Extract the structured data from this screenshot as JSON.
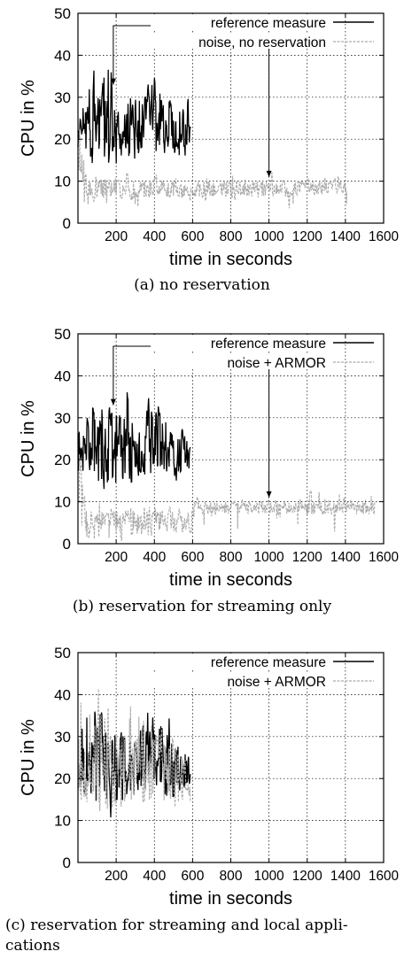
{
  "panels": [
    {
      "caption": "(a)  no reservation",
      "chart_data": {
        "type": "line",
        "xlabel": "time in seconds",
        "ylabel": "CPU in %",
        "xlim": [
          0,
          1600
        ],
        "ylim": [
          0,
          50
        ],
        "xticks": [
          "200",
          "400",
          "600",
          "800",
          "1000",
          "1200",
          "1400",
          "1600"
        ],
        "yticks": [
          "0",
          "10",
          "20",
          "30",
          "40",
          "50"
        ],
        "grid": true,
        "legend_position": "top-right",
        "series": [
          {
            "name": "reference measure",
            "color": "#000000",
            "start": 0,
            "end": 590,
            "band": [
              [
                0,
                18,
                28
              ],
              [
                100,
                14,
                33
              ],
              [
                200,
                14,
                31
              ],
              [
                300,
                15,
                30
              ],
              [
                400,
                17,
                35
              ],
              [
                500,
                15,
                28
              ],
              [
                560,
                17,
                27
              ],
              [
                590,
                17,
                22
              ]
            ],
            "spike_max": 37
          },
          {
            "name": "noise, no reservation",
            "color": "#aaaaaa",
            "start": 0,
            "end": 1410,
            "band": [
              [
                0,
                14,
                27
              ],
              [
                40,
                6,
                11
              ],
              [
                500,
                6,
                10
              ],
              [
                1410,
                7,
                10
              ]
            ],
            "spike_min": 4,
            "spike_max": 12
          }
        ],
        "annotations": [
          {
            "label_anchor": "legend",
            "x": 185,
            "y": 33
          },
          {
            "label_anchor": "legend",
            "x": 1000,
            "y": 11
          }
        ]
      }
    },
    {
      "caption": "(b)  reservation for streaming only",
      "chart_data": {
        "type": "line",
        "xlabel": "time in seconds",
        "ylabel": "CPU in %",
        "xlim": [
          0,
          1600
        ],
        "ylim": [
          0,
          50
        ],
        "xticks": [
          "200",
          "400",
          "600",
          "800",
          "1000",
          "1200",
          "1400",
          "1600"
        ],
        "yticks": [
          "0",
          "10",
          "20",
          "30",
          "40",
          "50"
        ],
        "grid": true,
        "legend_position": "top-right",
        "series": [
          {
            "name": "reference measure",
            "color": "#000000",
            "start": 0,
            "end": 590,
            "band": [
              [
                0,
                18,
                28
              ],
              [
                100,
                14,
                33
              ],
              [
                200,
                14,
                31
              ],
              [
                300,
                15,
                30
              ],
              [
                400,
                17,
                35
              ],
              [
                500,
                15,
                28
              ],
              [
                560,
                17,
                27
              ],
              [
                590,
                17,
                22
              ]
            ],
            "spike_max": 37
          },
          {
            "name": "noise + ARMOR",
            "color": "#aaaaaa",
            "start": 0,
            "end": 1555,
            "band": [
              [
                0,
                18,
                27
              ],
              [
                40,
                3,
                8
              ],
              [
                590,
                3,
                8
              ],
              [
                600,
                7,
                10
              ],
              [
                1555,
                7,
                10
              ]
            ],
            "spike_min": 1,
            "spike_max": 12
          }
        ],
        "annotations": [
          {
            "label_anchor": "legend",
            "x": 185,
            "y": 33
          },
          {
            "label_anchor": "legend",
            "x": 1000,
            "y": 11
          }
        ]
      }
    },
    {
      "caption": "(c)  reservation for streaming and local applications",
      "caption_line1": "(c)  reservation for streaming and local appli-",
      "caption_line2": "cations",
      "chart_data": {
        "type": "line",
        "xlabel": "time in seconds",
        "ylabel": "CPU in %",
        "xlim": [
          0,
          1600
        ],
        "ylim": [
          0,
          50
        ],
        "xticks": [
          "200",
          "400",
          "600",
          "800",
          "1000",
          "1200",
          "1400",
          "1600"
        ],
        "yticks": [
          "0",
          "10",
          "20",
          "30",
          "40",
          "50"
        ],
        "grid": true,
        "legend_position": "top-right",
        "series": [
          {
            "name": "reference measure",
            "color": "#000000",
            "start": 0,
            "end": 590,
            "band": [
              [
                0,
                18,
                28
              ],
              [
                100,
                14,
                33
              ],
              [
                200,
                14,
                31
              ],
              [
                300,
                15,
                30
              ],
              [
                400,
                17,
                35
              ],
              [
                500,
                15,
                28
              ],
              [
                560,
                17,
                27
              ],
              [
                590,
                17,
                22
              ]
            ],
            "spike_max": 37
          },
          {
            "name": "noise + ARMOR",
            "color": "#aaaaaa",
            "start": 0,
            "end": 590,
            "band": [
              [
                0,
                15,
                30
              ],
              [
                100,
                12,
                32
              ],
              [
                200,
                13,
                30
              ],
              [
                300,
                14,
                30
              ],
              [
                400,
                15,
                34
              ],
              [
                500,
                14,
                28
              ],
              [
                590,
                15,
                22
              ]
            ],
            "spike_max": 39
          }
        ],
        "annotations": []
      }
    }
  ]
}
